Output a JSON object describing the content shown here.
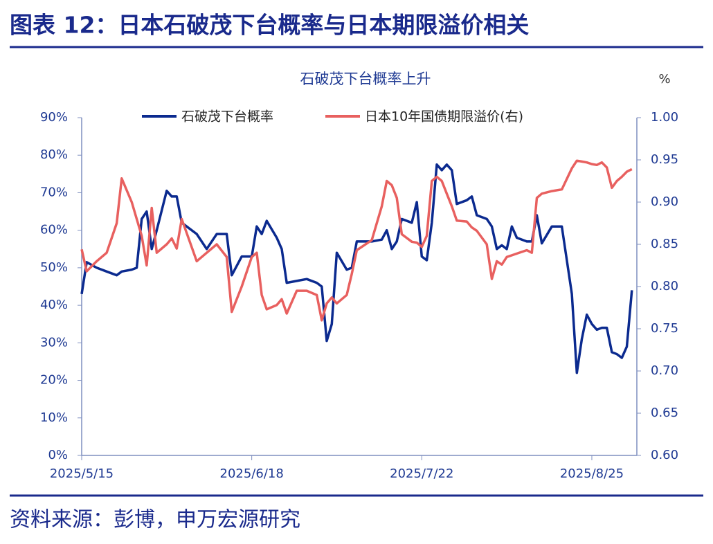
{
  "header": {
    "title": "图表 12：日本石破茂下台概率与日本期限溢价相关"
  },
  "source": "资料来源：彭博，申万宏源研究",
  "chart_data": {
    "type": "line",
    "title": "石破茂下台概率上升",
    "y2label": "%",
    "legend": "upper center",
    "x": [
      "2025/5/15",
      "2025/5/16",
      "2025/5/18",
      "2025/5/20",
      "2025/5/22",
      "2025/5/23",
      "2025/5/25",
      "2025/5/26",
      "2025/5/27",
      "2025/5/28",
      "2025/5/29",
      "2025/5/30",
      "2025/6/1",
      "2025/6/2",
      "2025/6/3",
      "2025/6/4",
      "2025/6/7",
      "2025/6/9",
      "2025/6/11",
      "2025/6/13",
      "2025/6/14",
      "2025/6/16",
      "2025/6/18",
      "2025/6/19",
      "2025/6/20",
      "2025/6/21",
      "2025/6/23",
      "2025/6/24",
      "2025/6/25",
      "2025/6/27",
      "2025/6/29",
      "2025/7/1",
      "2025/7/2",
      "2025/7/3",
      "2025/7/4",
      "2025/7/5",
      "2025/7/7",
      "2025/7/8",
      "2025/7/9",
      "2025/7/12",
      "2025/7/14",
      "2025/7/15",
      "2025/7/16",
      "2025/7/17",
      "2025/7/18",
      "2025/7/20",
      "2025/7/21",
      "2025/7/22",
      "2025/7/23",
      "2025/7/24",
      "2025/7/25",
      "2025/7/26",
      "2025/7/27",
      "2025/7/28",
      "2025/7/29",
      "2025/7/31",
      "2025/8/1",
      "2025/8/2",
      "2025/8/4",
      "2025/8/5",
      "2025/8/6",
      "2025/8/7",
      "2025/8/8",
      "2025/8/9",
      "2025/8/10",
      "2025/8/12",
      "2025/8/13",
      "2025/8/14",
      "2025/8/15",
      "2025/8/17",
      "2025/8/19",
      "2025/8/21",
      "2025/8/22",
      "2025/8/23",
      "2025/8/24",
      "2025/8/25",
      "2025/8/26",
      "2025/8/27",
      "2025/8/28",
      "2025/8/29",
      "2025/8/30",
      "2025/8/31",
      "2025/9/1",
      "2025/9/2"
    ],
    "xlim": [
      "2025/5/15",
      "2025/9/3"
    ],
    "xticks": [
      "2025/5/15",
      "2025/6/18",
      "2025/7/22",
      "2025/8/25"
    ],
    "ylim": [
      0,
      90
    ],
    "yticks": [
      {
        "value": 0,
        "label": "0%"
      },
      {
        "value": 10,
        "label": "10%"
      },
      {
        "value": 20,
        "label": "20%"
      },
      {
        "value": 30,
        "label": "30%"
      },
      {
        "value": 40,
        "label": "40%"
      },
      {
        "value": 50,
        "label": "50%"
      },
      {
        "value": 60,
        "label": "60%"
      },
      {
        "value": 70,
        "label": "70%"
      },
      {
        "value": 80,
        "label": "80%"
      },
      {
        "value": 90,
        "label": "90%"
      }
    ],
    "y2lim": [
      0.6,
      1
    ],
    "y2ticks": [
      {
        "value": 0.6,
        "label": "0.60"
      },
      {
        "value": 0.65,
        "label": "0.65"
      },
      {
        "value": 0.7,
        "label": "0.70"
      },
      {
        "value": 0.75,
        "label": "0.75"
      },
      {
        "value": 0.8,
        "label": "0.80"
      },
      {
        "value": 0.85,
        "label": "0.85"
      },
      {
        "value": 0.9,
        "label": "0.90"
      },
      {
        "value": 0.95,
        "label": "0.95"
      },
      {
        "value": 1,
        "label": "1.00"
      }
    ],
    "series": [
      {
        "name": "石破茂下台概率",
        "color": "#0b2a8f",
        "axis": "y",
        "values": [
          43,
          51.5,
          50,
          49,
          48,
          49,
          49.5,
          50,
          63,
          65,
          55,
          60,
          70.5,
          69,
          69,
          62,
          59,
          55,
          59,
          59,
          48,
          53,
          53,
          61,
          59,
          62.5,
          58,
          55,
          46,
          46.5,
          47,
          46,
          45,
          30.5,
          35,
          54,
          49.5,
          50,
          57,
          57,
          57.5,
          60,
          55,
          57,
          63,
          62,
          67.5,
          53,
          52,
          62,
          77.5,
          76,
          77.5,
          76,
          67,
          68,
          69,
          64,
          63,
          61,
          55,
          56,
          55,
          61,
          58,
          57,
          57,
          64,
          56.5,
          61,
          61,
          43,
          22,
          31,
          37.5,
          35,
          33.5,
          34,
          34,
          27.5,
          27,
          26,
          29,
          44
        ]
      },
      {
        "name": "日本10年国债期限溢价(右)",
        "color": "#e8605f",
        "axis": "y2",
        "values": [
          0.844,
          0.818,
          0.83,
          0.84,
          0.875,
          0.928,
          0.9,
          0.88,
          0.86,
          0.825,
          0.893,
          0.84,
          0.85,
          0.857,
          0.845,
          0.88,
          0.83,
          0.84,
          0.85,
          0.835,
          0.77,
          0.8,
          0.835,
          0.84,
          0.79,
          0.773,
          0.778,
          0.785,
          0.768,
          0.795,
          0.795,
          0.79,
          0.76,
          0.78,
          0.787,
          0.78,
          0.79,
          0.815,
          0.843,
          0.855,
          0.895,
          0.925,
          0.92,
          0.905,
          0.862,
          0.853,
          0.852,
          0.847,
          0.86,
          0.925,
          0.93,
          0.925,
          0.91,
          0.895,
          0.878,
          0.877,
          0.87,
          0.866,
          0.85,
          0.809,
          0.83,
          0.826,
          0.835,
          0.837,
          0.839,
          0.843,
          0.84,
          0.905,
          0.91,
          0.913,
          0.915,
          0.94,
          0.949,
          0.948,
          0.947,
          0.945,
          0.944,
          0.947,
          0.941,
          0.917,
          0.925,
          0.93,
          0.936,
          0.939
        ]
      }
    ]
  }
}
